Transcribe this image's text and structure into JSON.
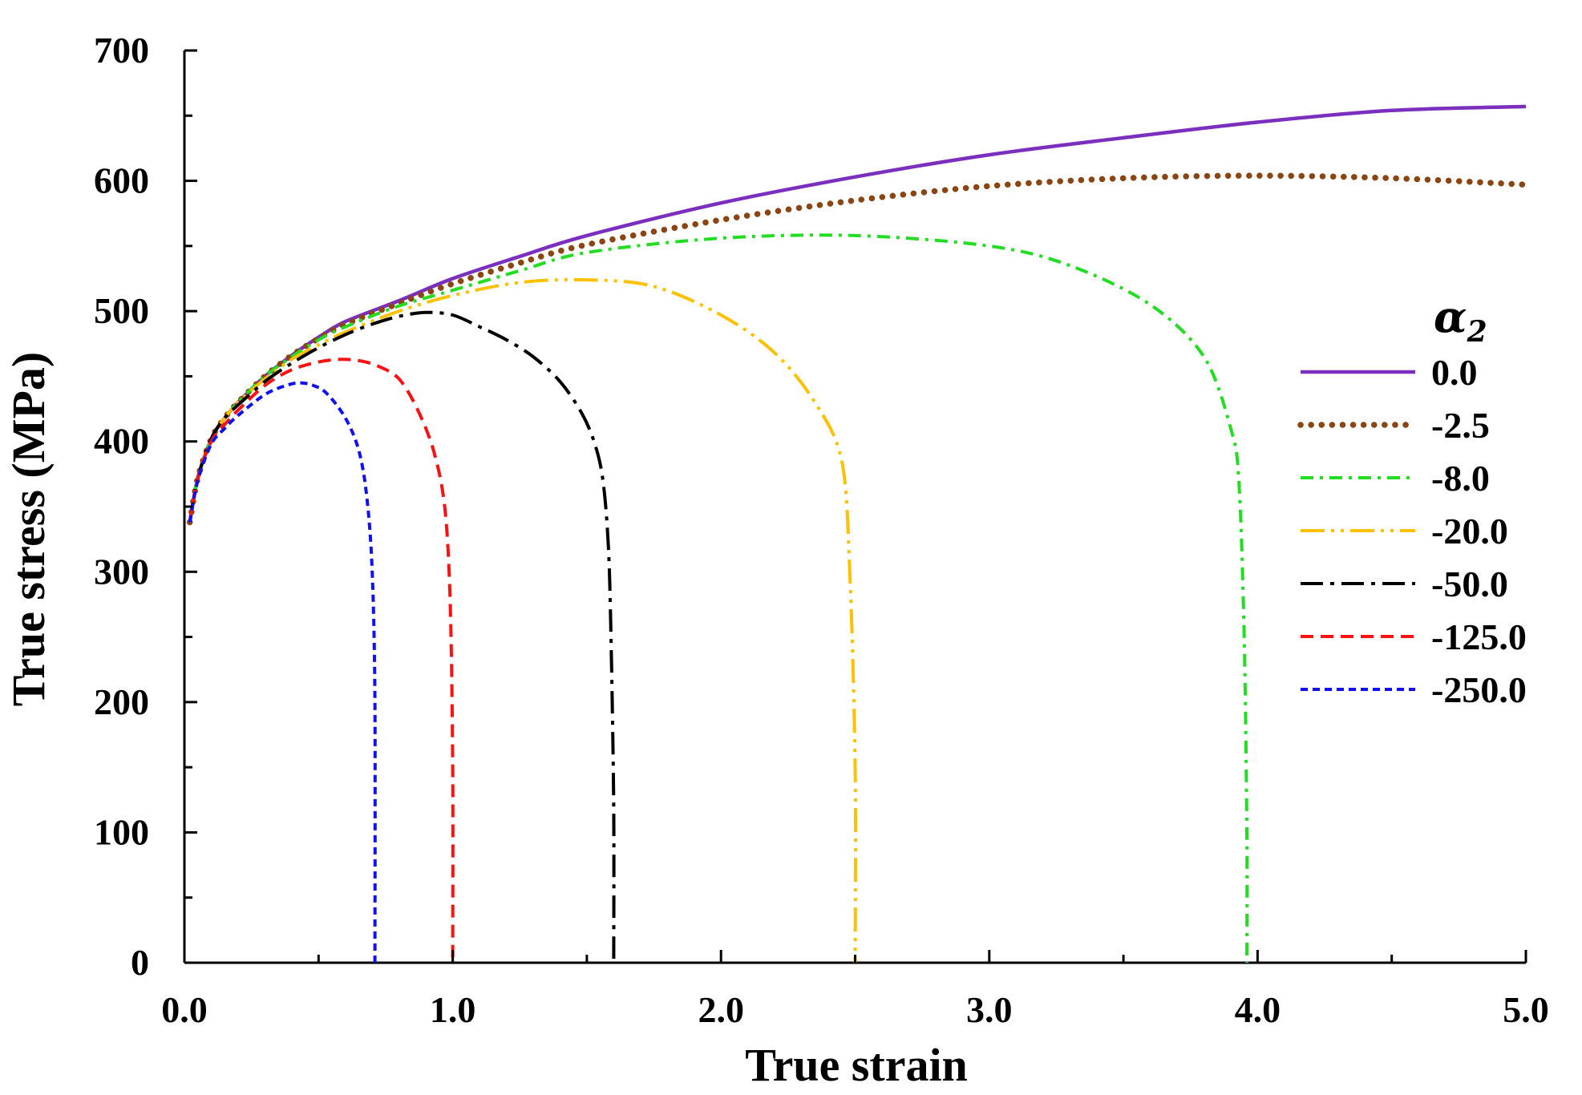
{
  "chart_data": {
    "type": "line",
    "title": "",
    "xlabel": "True strain",
    "ylabel": "True stress (MPa)",
    "xlim": [
      0,
      5
    ],
    "ylim": [
      0,
      700
    ],
    "xticks": [
      0,
      1,
      2,
      3,
      4,
      5
    ],
    "xtick_labels": [
      "0.0",
      "1.0",
      "2.0",
      "3.0",
      "4.0",
      "5.0"
    ],
    "yticks": [
      0,
      100,
      200,
      300,
      400,
      500,
      600,
      700
    ],
    "ytick_labels": [
      "0",
      "100",
      "200",
      "300",
      "400",
      "500",
      "600",
      "700"
    ],
    "grid": false,
    "legend_title": "α",
    "legend_title_sub": "2",
    "legend_position": "right",
    "series": [
      {
        "name": "0.0",
        "color": "#7B2FBE",
        "style": "solid",
        "x": [
          0.02,
          0.05,
          0.1,
          0.15,
          0.2,
          0.3,
          0.4,
          0.5,
          0.6,
          0.8,
          1.0,
          1.25,
          1.5,
          2.0,
          2.5,
          3.0,
          3.5,
          4.0,
          4.5,
          5.0
        ],
        "y": [
          338,
          372,
          402,
          418,
          430,
          450,
          466,
          480,
          492,
          508,
          525,
          542,
          558,
          583,
          603,
          620,
          633,
          645,
          654,
          657
        ]
      },
      {
        "name": "-2.5",
        "color": "#8B4513",
        "style": "dotted",
        "x": [
          0.02,
          0.05,
          0.1,
          0.15,
          0.2,
          0.3,
          0.4,
          0.5,
          0.6,
          0.8,
          1.0,
          1.25,
          1.5,
          2.0,
          2.5,
          3.0,
          3.5,
          4.0,
          4.5,
          5.0
        ],
        "y": [
          338,
          372,
          402,
          418,
          430,
          450,
          466,
          479,
          490,
          506,
          521,
          537,
          551,
          570,
          585,
          596,
          602,
          604,
          602,
          597
        ]
      },
      {
        "name": "-8.0",
        "color": "#22DD22",
        "style": "dashdot",
        "x": [
          0.02,
          0.05,
          0.1,
          0.15,
          0.2,
          0.3,
          0.4,
          0.5,
          0.6,
          0.8,
          1.0,
          1.25,
          1.5,
          2.0,
          2.5,
          3.0,
          3.3,
          3.6,
          3.8,
          3.9,
          3.93,
          3.95,
          3.96,
          3.96
        ],
        "y": [
          338,
          372,
          402,
          418,
          430,
          450,
          465,
          478,
          488,
          504,
          516,
          531,
          545,
          556,
          558,
          550,
          535,
          505,
          465,
          410,
          370,
          250,
          100,
          0
        ]
      },
      {
        "name": "-20.0",
        "color": "#FFC000",
        "style": "dashdotdot",
        "x": [
          0.02,
          0.05,
          0.1,
          0.15,
          0.2,
          0.3,
          0.4,
          0.5,
          0.6,
          0.8,
          1.0,
          1.25,
          1.5,
          1.75,
          2.0,
          2.2,
          2.35,
          2.45,
          2.48,
          2.5,
          2.5
        ],
        "y": [
          338,
          372,
          402,
          418,
          430,
          448,
          463,
          474,
          484,
          500,
          512,
          522,
          524,
          519,
          497,
          468,
          430,
          385,
          300,
          150,
          0
        ]
      },
      {
        "name": "-50.0",
        "color": "#000000",
        "style": "longdashdot",
        "x": [
          0.02,
          0.05,
          0.1,
          0.15,
          0.2,
          0.3,
          0.4,
          0.5,
          0.6,
          0.7,
          0.8,
          0.9,
          1.0,
          1.1,
          1.2,
          1.3,
          1.4,
          1.48,
          1.53,
          1.56,
          1.58,
          1.59,
          1.6,
          1.6
        ],
        "y": [
          338,
          372,
          402,
          418,
          428,
          446,
          460,
          472,
          482,
          490,
          496,
          499,
          497,
          488,
          478,
          465,
          446,
          422,
          398,
          370,
          320,
          250,
          120,
          0
        ]
      },
      {
        "name": "-125.0",
        "color": "#FF1111",
        "style": "dashed",
        "x": [
          0.02,
          0.05,
          0.1,
          0.15,
          0.2,
          0.3,
          0.4,
          0.5,
          0.58,
          0.65,
          0.72,
          0.8,
          0.87,
          0.93,
          0.97,
          0.99,
          1.0,
          1.0
        ],
        "y": [
          338,
          372,
          400,
          413,
          424,
          443,
          455,
          461,
          463,
          462,
          458,
          448,
          424,
          392,
          350,
          280,
          150,
          0
        ]
      },
      {
        "name": "-250.0",
        "color": "#1111EE",
        "style": "shortdash",
        "x": [
          0.02,
          0.05,
          0.1,
          0.15,
          0.2,
          0.3,
          0.38,
          0.43,
          0.48,
          0.53,
          0.6,
          0.65,
          0.68,
          0.7,
          0.71,
          0.71
        ],
        "y": [
          338,
          370,
          398,
          410,
          420,
          436,
          443,
          445,
          443,
          437,
          418,
          393,
          357,
          300,
          200,
          0
        ]
      }
    ]
  }
}
